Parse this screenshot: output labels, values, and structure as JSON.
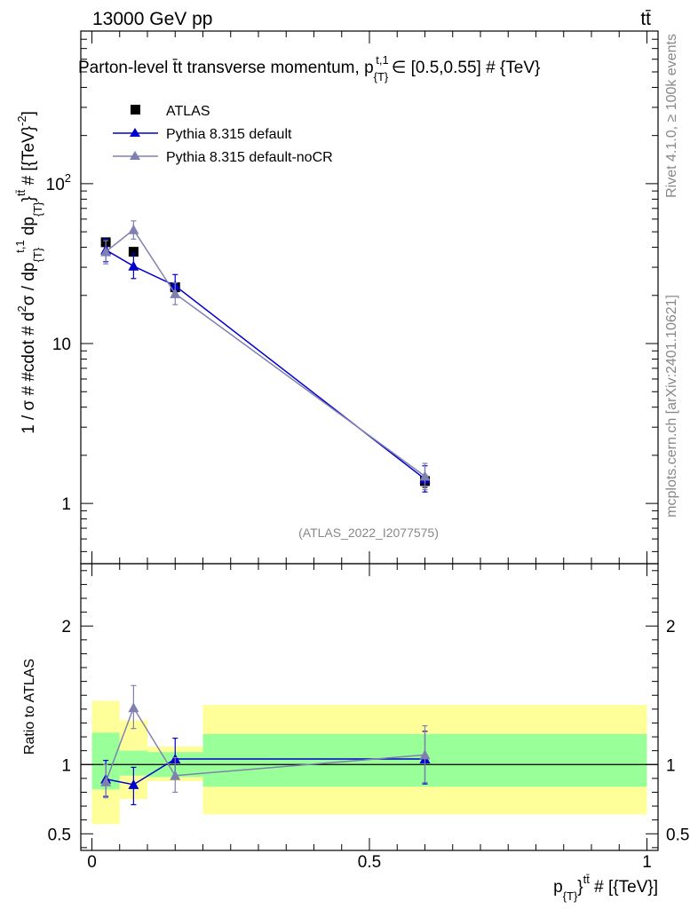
{
  "header": {
    "left": "13000 GeV pp",
    "right": "tt̄"
  },
  "side": {
    "rivet": "Rivet 4.1.0, ≥ 100k events",
    "mcplots": "mcplots.cern.ch [arXiv:2401.10621]"
  },
  "chart_data": [
    {
      "type": "scatter",
      "panel": "main",
      "title": "Parton-level t̄t transverse momentum, p_{T}^{t,1} ∈ [0.5,0.55] # {TeV}",
      "title_display": "Parton-level t̄t transverse momentum, p",
      "title_sub": "{T}",
      "title_sup": "t,1",
      "title_tail": "∈ [0.5,0.55] # {TeV}",
      "ylabel": "1 / σ # #cdot # d²σ / dp_{T}^{t,1} dp_{T}^{tt̄} # [{TeV}⁻²]",
      "ylabel_parts": {
        "a": "1 / σ # #cdot # d",
        "b": "2",
        "c": "σ / dp",
        "d": "{T}",
        "e": "t,1",
        "f": " dp",
        "g": "{T}",
        "h": "}",
        "i": "tt̄",
        "j": " # [{TeV}",
        "k": "-2",
        "l": "]"
      },
      "yscale": "log",
      "ylim": [
        0.42,
        900
      ],
      "xlim": [
        -0.02,
        1.02
      ],
      "yticks": [
        {
          "value": 1,
          "base": "1",
          "exp": ""
        },
        {
          "value": 10,
          "base": "10",
          "exp": ""
        },
        {
          "value": 100,
          "base": "10",
          "exp": "2"
        }
      ],
      "watermark": "(ATLAS_2022_I2077575)",
      "legend": [
        "ATLAS",
        "Pythia 8.315 default",
        "Pythia 8.315 default-noCR"
      ],
      "series": [
        {
          "name": "ATLAS",
          "color": "#000000",
          "marker": "square",
          "x": [
            0.025,
            0.075,
            0.15,
            0.6
          ],
          "y": [
            43.0,
            37.5,
            22.5,
            1.38
          ],
          "yerr": [
            [
              2.5,
              2.2,
              1.5,
              0.12
            ]
          ]
        },
        {
          "name": "Pythia 8.315 default",
          "color": "#0000cc",
          "marker": "triangle",
          "x": [
            0.025,
            0.075,
            0.15,
            0.6
          ],
          "y": [
            38.5,
            30.5,
            23.0,
            1.42
          ],
          "ylo": [
            32.5,
            25.5,
            19.5,
            1.18
          ],
          "yhi": [
            45.0,
            36.5,
            27.0,
            1.72
          ]
        },
        {
          "name": "Pythia 8.315 default-noCR",
          "color": "#8080b0",
          "marker": "triangle",
          "x": [
            0.025,
            0.075,
            0.15,
            0.6
          ],
          "y": [
            37.5,
            51.5,
            20.5,
            1.48
          ],
          "ylo": [
            31.5,
            45.0,
            17.5,
            1.22
          ],
          "yhi": [
            44.0,
            58.5,
            24.0,
            1.78
          ]
        }
      ]
    },
    {
      "type": "scatter",
      "panel": "ratio",
      "ylabel": "Ratio to ATLAS",
      "xlabel": "p_{T}^{tt̄} # [{TeV}]",
      "xlabel_parts": {
        "a": "p",
        "b": "{T}",
        "c": "}",
        "d": "tt̄",
        "e": " # [{TeV}]"
      },
      "ylim": [
        0.38,
        2.45
      ],
      "xlim": [
        -0.02,
        1.02
      ],
      "yticks": [
        {
          "value": 0.5,
          "label": "0.5"
        },
        {
          "value": 1,
          "label": "1"
        },
        {
          "value": 2,
          "label": "2"
        }
      ],
      "xticks": [
        {
          "value": 0,
          "label": "0"
        },
        {
          "value": 0.5,
          "label": "0.5"
        },
        {
          "value": 1,
          "label": "1"
        }
      ],
      "bands": [
        {
          "x0": 0.0,
          "x1": 0.05,
          "y_lo": 0.82,
          "y_hi": 1.23,
          "yy_lo": 0.57,
          "yy_hi": 1.46
        },
        {
          "x0": 0.05,
          "x1": 0.1,
          "y_lo": 0.92,
          "y_hi": 1.1,
          "yy_lo": 0.75,
          "yy_hi": 1.32
        },
        {
          "x0": 0.1,
          "x1": 0.2,
          "y_lo": 0.91,
          "y_hi": 1.09,
          "yy_lo": 0.88,
          "yy_hi": 1.13
        },
        {
          "x0": 0.2,
          "x1": 1.0,
          "y_lo": 0.84,
          "y_hi": 1.22,
          "yy_lo": 0.64,
          "yy_hi": 1.43
        }
      ],
      "series": [
        {
          "name": "Pythia 8.315 default",
          "color": "#0000cc",
          "x": [
            0.025,
            0.075,
            0.15,
            0.6
          ],
          "y": [
            0.895,
            0.855,
            1.04,
            1.04
          ],
          "ylo": [
            0.77,
            0.71,
            0.91,
            0.86
          ],
          "yhi": [
            1.03,
            0.98,
            1.19,
            1.24
          ]
        },
        {
          "name": "Pythia 8.315 default-noCR",
          "color": "#8080b0",
          "x": [
            0.025,
            0.075,
            0.15,
            0.6
          ],
          "y": [
            0.875,
            1.41,
            0.92,
            1.07
          ],
          "ylo": [
            0.76,
            1.26,
            0.8,
            0.87
          ],
          "yhi": [
            1.0,
            1.57,
            1.05,
            1.28
          ]
        }
      ]
    }
  ]
}
